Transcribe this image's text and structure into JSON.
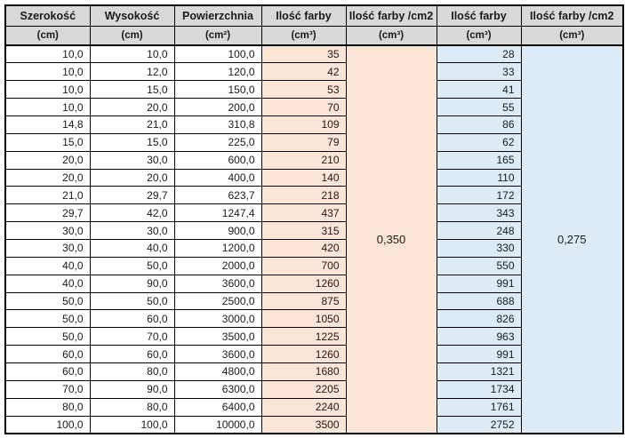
{
  "table": {
    "columns": [
      {
        "label": "Szerokość",
        "unit": "(cm)"
      },
      {
        "label": "Wysokość",
        "unit": "(cm)"
      },
      {
        "label": "Powierzchnia",
        "unit": "(cm²)"
      },
      {
        "label": "Ilość farby",
        "unit": "(cm³)"
      },
      {
        "label": "Ilość farby /cm2",
        "unit": "(cm³)"
      },
      {
        "label": "Ilość farby",
        "unit": "(cm³)"
      },
      {
        "label": "Ilość farby /cm2",
        "unit": "(cm³)"
      }
    ],
    "rows": [
      [
        "10,0",
        "10,0",
        "100,0",
        "35",
        "28"
      ],
      [
        "10,0",
        "12,0",
        "120,0",
        "42",
        "33"
      ],
      [
        "10,0",
        "15,0",
        "150,0",
        "53",
        "41"
      ],
      [
        "10,0",
        "20,0",
        "200,0",
        "70",
        "55"
      ],
      [
        "14,8",
        "21,0",
        "310,8",
        "109",
        "86"
      ],
      [
        "15,0",
        "15,0",
        "225,0",
        "79",
        "62"
      ],
      [
        "20,0",
        "30,0",
        "600,0",
        "210",
        "165"
      ],
      [
        "20,0",
        "20,0",
        "400,0",
        "140",
        "110"
      ],
      [
        "21,0",
        "29,7",
        "623,7",
        "218",
        "172"
      ],
      [
        "29,7",
        "42,0",
        "1247,4",
        "437",
        "343"
      ],
      [
        "30,0",
        "30,0",
        "900,0",
        "315",
        "248"
      ],
      [
        "30,0",
        "40,0",
        "1200,0",
        "420",
        "330"
      ],
      [
        "40,0",
        "50,0",
        "2000,0",
        "700",
        "550"
      ],
      [
        "40,0",
        "90,0",
        "3600,0",
        "1260",
        "991"
      ],
      [
        "50,0",
        "50,0",
        "2500,0",
        "875",
        "688"
      ],
      [
        "50,0",
        "60,0",
        "3000,0",
        "1050",
        "826"
      ],
      [
        "50,0",
        "70,0",
        "3500,0",
        "1225",
        "963"
      ],
      [
        "60,0",
        "60,0",
        "3600,0",
        "1260",
        "991"
      ],
      [
        "60,0",
        "80,0",
        "4800,0",
        "1680",
        "1321"
      ],
      [
        "70,0",
        "90,0",
        "6300,0",
        "2205",
        "1734"
      ],
      [
        "80,0",
        "80,0",
        "6400,0",
        "2240",
        "1761"
      ],
      [
        "100,0",
        "100,0",
        "10000,0",
        "3500",
        "2752"
      ]
    ],
    "merged_values": {
      "per_cm2_a": "0,350",
      "per_cm2_b": "0,275"
    },
    "colors": {
      "header_bg": "#D9D9D9",
      "orange_fill": "#FCE4D6",
      "blue_fill": "#DDEBF7",
      "border": "#000000",
      "cell_bg": "#FFFFFF"
    }
  }
}
